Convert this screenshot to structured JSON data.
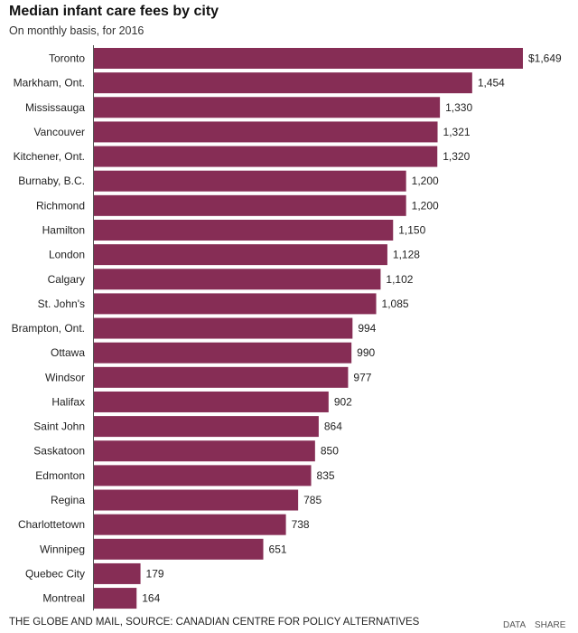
{
  "chart_data": {
    "type": "bar",
    "orientation": "horizontal",
    "title": "Median infant care fees by city",
    "subtitle": "On monthly basis, for 2016",
    "categories": [
      "Toronto",
      "Markham, Ont.",
      "Mississauga",
      "Vancouver",
      "Kitchener, Ont.",
      "Burnaby, B.C.",
      "Richmond",
      "Hamilton",
      "London",
      "Calgary",
      "St. John's",
      "Brampton, Ont.",
      "Ottawa",
      "Windsor",
      "Halifax",
      "Saint John",
      "Saskatoon",
      "Edmonton",
      "Regina",
      "Charlottetown",
      "Winnipeg",
      "Quebec City",
      "Montreal"
    ],
    "values": [
      1649,
      1454,
      1330,
      1321,
      1320,
      1200,
      1200,
      1150,
      1128,
      1102,
      1085,
      994,
      990,
      977,
      902,
      864,
      850,
      835,
      785,
      738,
      651,
      179,
      164
    ],
    "value_labels": [
      "$1,649",
      "1,454",
      "1,330",
      "1,321",
      "1,320",
      "1,200",
      "1,200",
      "1,150",
      "1,128",
      "1,102",
      "1,085",
      "994",
      "990",
      "977",
      "902",
      "864",
      "850",
      "835",
      "785",
      "738",
      "651",
      "179",
      "164"
    ],
    "xlim": [
      0,
      1649
    ],
    "xlabel": "",
    "ylabel": "",
    "grid": false,
    "bar_color": "#862d55"
  },
  "footer": {
    "source": "THE GLOBE AND MAIL, SOURCE: CANADIAN CENTRE FOR POLICY ALTERNATIVES",
    "data_label": "DATA",
    "share_label": "SHARE"
  }
}
